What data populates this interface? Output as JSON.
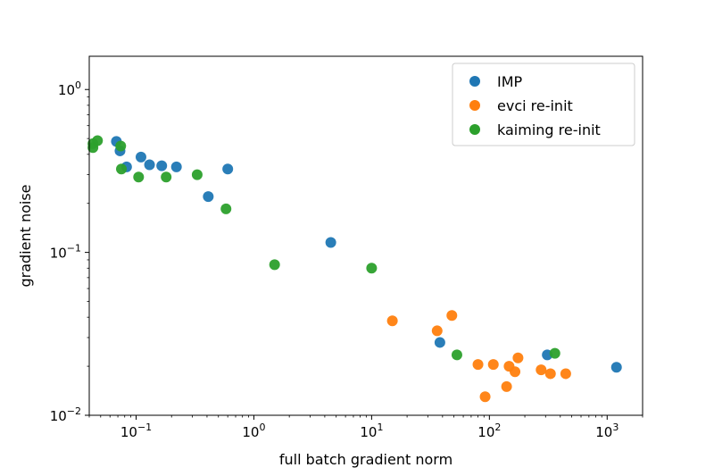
{
  "chart_data": {
    "type": "scatter",
    "title": "",
    "xlabel": "full batch gradient norm",
    "ylabel": "gradient noise",
    "xscale": "log",
    "yscale": "log",
    "xlim": [
      0.04,
      2000
    ],
    "ylim": [
      0.01,
      1.6
    ],
    "xticks": [
      {
        "value": 0.1,
        "base": "10",
        "exp": "−1"
      },
      {
        "value": 1,
        "base": "10",
        "exp": "0"
      },
      {
        "value": 10,
        "base": "10",
        "exp": "1"
      },
      {
        "value": 100,
        "base": "10",
        "exp": "2"
      },
      {
        "value": 1000,
        "base": "10",
        "exp": "3"
      }
    ],
    "yticks": [
      {
        "value": 0.01,
        "base": "10",
        "exp": "−2"
      },
      {
        "value": 0.1,
        "base": "10",
        "exp": "−1"
      },
      {
        "value": 1,
        "base": "10",
        "exp": "0"
      }
    ],
    "grid": false,
    "legend": "top-right",
    "series": [
      {
        "name": "IMP",
        "color": "#1f77b4",
        "points": [
          {
            "x": 0.068,
            "y": 0.48
          },
          {
            "x": 0.073,
            "y": 0.42
          },
          {
            "x": 0.083,
            "y": 0.335
          },
          {
            "x": 0.11,
            "y": 0.385
          },
          {
            "x": 0.13,
            "y": 0.345
          },
          {
            "x": 0.165,
            "y": 0.34
          },
          {
            "x": 0.22,
            "y": 0.335
          },
          {
            "x": 0.41,
            "y": 0.22
          },
          {
            "x": 0.6,
            "y": 0.325
          },
          {
            "x": 4.5,
            "y": 0.115
          },
          {
            "x": 38,
            "y": 0.028
          },
          {
            "x": 310,
            "y": 0.0235
          },
          {
            "x": 1200,
            "y": 0.0197
          }
        ]
      },
      {
        "name": "evci re-init",
        "color": "#ff7f0e",
        "points": [
          {
            "x": 15,
            "y": 0.038
          },
          {
            "x": 36,
            "y": 0.033
          },
          {
            "x": 48,
            "y": 0.041
          },
          {
            "x": 80,
            "y": 0.0205
          },
          {
            "x": 92,
            "y": 0.013
          },
          {
            "x": 108,
            "y": 0.0205
          },
          {
            "x": 140,
            "y": 0.015
          },
          {
            "x": 147,
            "y": 0.02
          },
          {
            "x": 165,
            "y": 0.0185
          },
          {
            "x": 175,
            "y": 0.0225
          },
          {
            "x": 275,
            "y": 0.019
          },
          {
            "x": 330,
            "y": 0.018
          },
          {
            "x": 445,
            "y": 0.018
          }
        ]
      },
      {
        "name": "kaiming re-init",
        "color": "#2ca02c",
        "points": [
          {
            "x": 0.043,
            "y": 0.465
          },
          {
            "x": 0.043,
            "y": 0.44
          },
          {
            "x": 0.047,
            "y": 0.485
          },
          {
            "x": 0.074,
            "y": 0.45
          },
          {
            "x": 0.075,
            "y": 0.325
          },
          {
            "x": 0.105,
            "y": 0.29
          },
          {
            "x": 0.18,
            "y": 0.29
          },
          {
            "x": 0.33,
            "y": 0.3
          },
          {
            "x": 0.58,
            "y": 0.185
          },
          {
            "x": 1.5,
            "y": 0.084
          },
          {
            "x": 10,
            "y": 0.08
          },
          {
            "x": 53,
            "y": 0.0235
          },
          {
            "x": 360,
            "y": 0.024
          }
        ]
      }
    ]
  }
}
